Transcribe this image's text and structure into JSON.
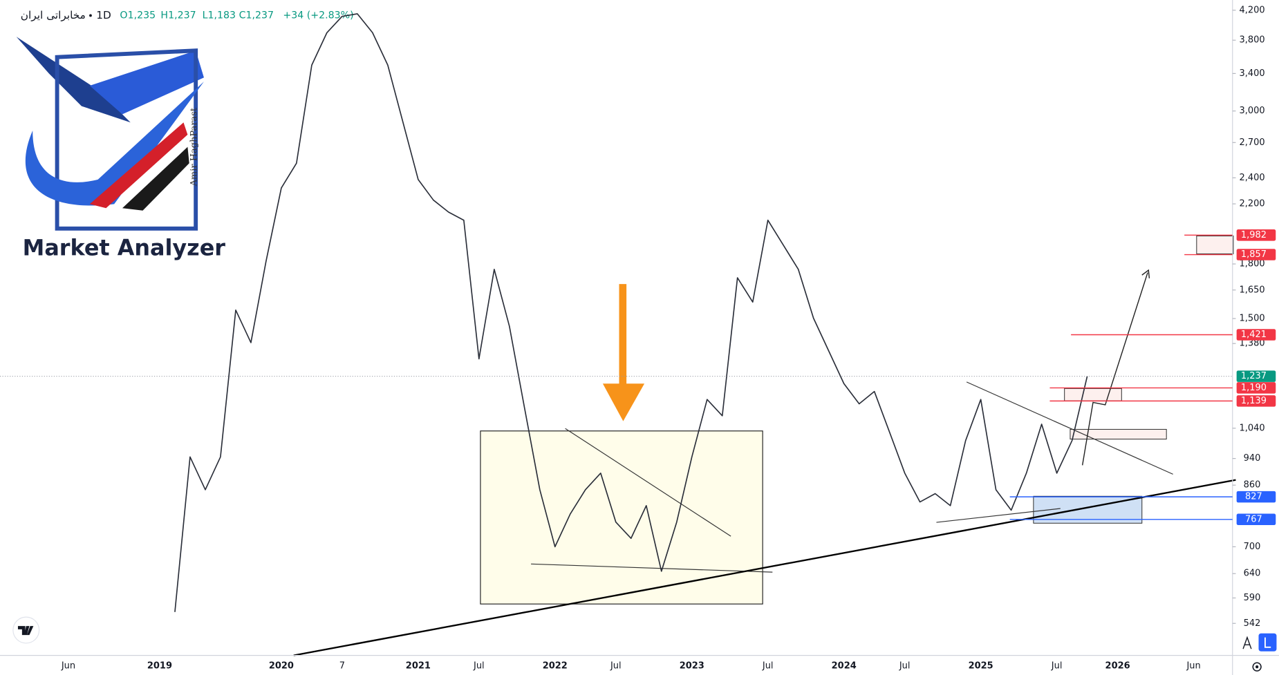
{
  "header": {
    "symbol": "مخابراتی ایران",
    "interval": "1D",
    "open": "O1,235",
    "high": "H1,237",
    "low": "L1,183",
    "close": "C1,237",
    "change": "+34 (+2.83%)"
  },
  "logo": {
    "title": "Market Analyzer",
    "author": "Amir HaghParast"
  },
  "chart_data": {
    "type": "line",
    "log_scale": true,
    "grid": false,
    "color": "#2a2e39",
    "categories": [
      null,
      null,
      null,
      null,
      "Jun",
      null,
      null,
      null,
      null,
      null,
      "2019",
      null,
      null,
      null,
      null,
      null,
      null,
      null,
      "2020",
      null,
      null,
      null,
      "7",
      null,
      null,
      null,
      null,
      "2021",
      null,
      null,
      null,
      "Jul",
      null,
      null,
      null,
      null,
      "2022",
      null,
      null,
      null,
      "Jul",
      null,
      null,
      null,
      null,
      "2023",
      null,
      null,
      null,
      null,
      "Jul",
      null,
      null,
      null,
      null,
      "2024",
      null,
      null,
      null,
      "Jul",
      null,
      null,
      null,
      null,
      "2025",
      null,
      null,
      null,
      null,
      "Jul",
      null,
      null,
      null,
      "2026",
      null,
      null,
      null,
      null,
      "Jun",
      null,
      null
    ],
    "values": [
      null,
      null,
      null,
      null,
      null,
      null,
      null,
      null,
      null,
      null,
      null,
      563,
      945,
      847,
      945,
      1543,
      1384,
      1817,
      2320,
      2520,
      3496,
      3897,
      4114,
      4150,
      3897,
      3496,
      2890,
      2386,
      2228,
      2140,
      2083,
      1311,
      1768,
      1462,
      1112,
      847,
      700,
      781,
      847,
      895,
      760,
      720,
      803,
      645,
      760,
      945,
      1145,
      1084,
      1719,
      1585,
      2083,
      1919,
      1768,
      1502,
      1346,
      1207,
      1128,
      1176,
      1026,
      895,
      813,
      836,
      803,
      998,
      1145,
      847,
      791,
      895,
      1054,
      895,
      998,
      1237,
      null,
      null,
      null,
      null,
      null,
      null,
      null,
      null,
      null
    ],
    "ylim": [
      487,
      4346
    ],
    "yticks": [
      542,
      590,
      640,
      700,
      860,
      940,
      {
        "value": 1040,
        "label": "1,040"
      },
      {
        "value": 1380,
        "label": "1,380"
      },
      {
        "value": 1500,
        "label": "1,500"
      },
      {
        "value": 1650,
        "label": "1,650"
      },
      {
        "value": 1800,
        "label": "1,800"
      },
      {
        "value": 2200,
        "label": "2,200"
      },
      {
        "value": 2400,
        "label": "2,400"
      },
      {
        "value": 2700,
        "label": "2,700"
      },
      {
        "value": 3000,
        "label": "3,000"
      },
      {
        "value": 3400,
        "label": "3,400"
      },
      {
        "value": 3800,
        "label": "3,800"
      },
      {
        "value": 4200,
        "label": "4,200"
      }
    ],
    "price_levels": {
      "values": [
        1982,
        1857,
        1421,
        1237,
        1190,
        1139,
        827,
        767
      ],
      "value_labels": [
        "1,982",
        "1,857",
        "1,421",
        "1,237",
        "1,190",
        "1,139",
        "827",
        "767"
      ],
      "colors": [
        "#f23645",
        "#f23645",
        "#f23645",
        "#089981",
        "#f23645",
        "#f23645",
        "#2962ff",
        "#2962ff"
      ]
    }
  }
}
